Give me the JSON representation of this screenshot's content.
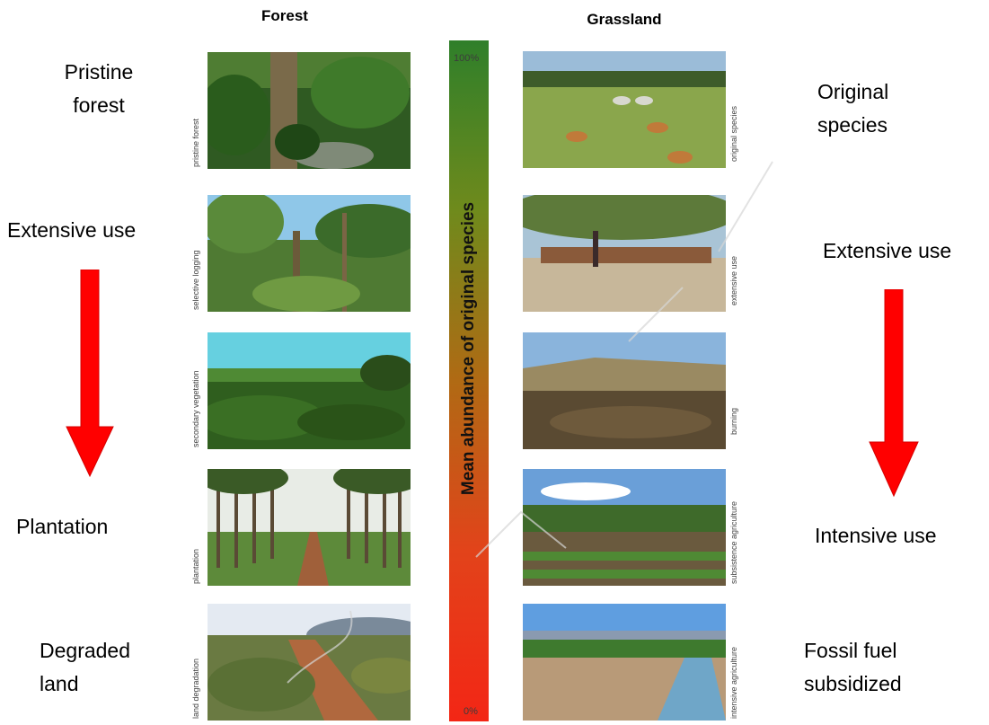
{
  "headers": {
    "forest": "Forest",
    "grassland": "Grassland"
  },
  "forest_labels": {
    "top": "Pristine\nforest",
    "extensive": "Extensive use",
    "plantation": "Plantation",
    "degraded": "Degraded\nland"
  },
  "grass_labels": {
    "top": "Original\nspecies",
    "extensive": "Extensive use",
    "intensive": "Intensive use",
    "fossil": "Fossil fuel\nsubsidized"
  },
  "forest_photos": [
    "pristine forest",
    "selective logging",
    "secondary vegetation",
    "plantation",
    "land degradation"
  ],
  "grass_photos": [
    "original species",
    "extensive use",
    "burning",
    "subsistence agriculture",
    "intensive agriculture"
  ],
  "gradient": {
    "title": "Mean abundance of original species",
    "top_label": "100%",
    "bottom_label": "0%"
  },
  "colors": {
    "arrow": "#ff0000",
    "bar_top": "#2f7f2a",
    "bar_bottom": "#f32615"
  }
}
